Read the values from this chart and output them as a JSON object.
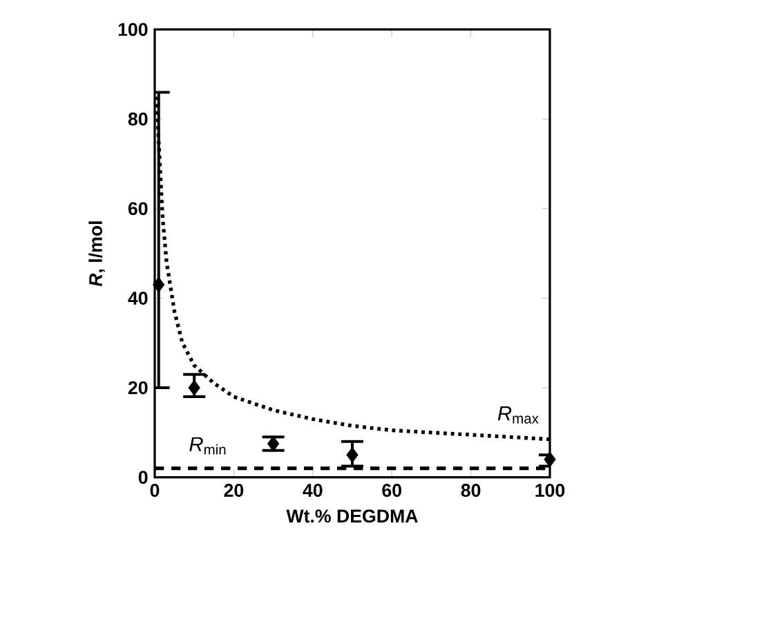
{
  "chart_data": {
    "type": "scatter",
    "xlabel": "Wt.% DEGDMA",
    "ylabel": "*R*, l/mol",
    "xlim": [
      0,
      100
    ],
    "ylim": [
      0,
      100
    ],
    "xticks": [
      0,
      20,
      40,
      60,
      80,
      100
    ],
    "yticks": [
      0,
      20,
      40,
      60,
      80,
      100
    ],
    "series": [
      {
        "marker": "diamond",
        "color": "#000000",
        "x": [
          1,
          10,
          30,
          50,
          100
        ],
        "values": [
          43,
          20,
          7.5,
          5,
          4
        ],
        "errors": [
          [
            20,
            86
          ],
          [
            18,
            23
          ],
          [
            6,
            9
          ],
          [
            2.5,
            8
          ],
          [
            2.5,
            5
          ]
        ]
      },
      {
        "type": "line",
        "line_style": "dotted",
        "marker": "none",
        "color": "#000000",
        "x": [
          0.5,
          1,
          2,
          3,
          5,
          7,
          10,
          15,
          20,
          30,
          40,
          50,
          60,
          70,
          80,
          90,
          100
        ],
        "values": [
          85,
          75,
          58,
          48,
          37,
          30,
          25,
          21,
          18,
          15,
          13,
          11.5,
          10.5,
          10,
          9.5,
          9,
          8.5
        ]
      },
      {
        "type": "line",
        "line_style": "dashed",
        "marker": "none",
        "color": "#000000",
        "x": [
          0,
          100
        ],
        "values": [
          2,
          2
        ]
      }
    ],
    "annotations": [
      "*R*$_{max}$",
      "*R*$_{min}$"
    ]
  }
}
